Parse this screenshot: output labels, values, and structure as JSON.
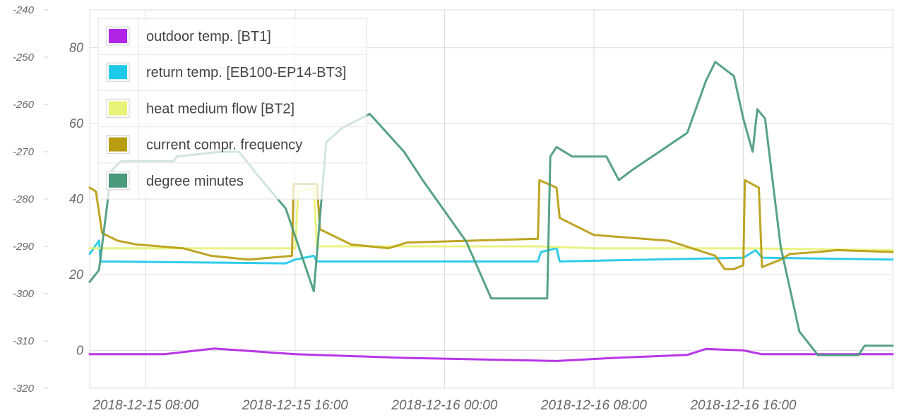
{
  "chart_data": {
    "type": "line",
    "title": "",
    "grid": true,
    "legend_position": "top-left",
    "x_range": [
      "2018-12-15 05:00",
      "2018-12-17 00:00"
    ],
    "x_ticks": [
      "2018-12-15 08:00",
      "2018-12-15 16:00",
      "2018-12-16 00:00",
      "2018-12-16 08:00",
      "2018-12-16 16:00"
    ],
    "y_axis_left": {
      "range": [
        -320,
        -240
      ],
      "ticks": [
        -240,
        -250,
        -260,
        -270,
        -280,
        -290,
        -300,
        -310,
        -320
      ]
    },
    "y_axis_right": {
      "range": [
        -10,
        90
      ],
      "ticks": [
        0,
        20,
        40,
        60,
        80
      ]
    },
    "series": [
      {
        "name": "outdoor temp. [BT1]",
        "color": "#b225e6",
        "axis": "right",
        "points": [
          [
            "2018-12-15 05:00",
            -1
          ],
          [
            "2018-12-15 09:00",
            -1
          ],
          [
            "2018-12-15 11:40",
            0.5
          ],
          [
            "2018-12-15 16:00",
            -1
          ],
          [
            "2018-12-15 22:00",
            -2
          ],
          [
            "2018-12-16 06:00",
            -2.8
          ],
          [
            "2018-12-16 09:00",
            -2
          ],
          [
            "2018-12-16 13:00",
            -1.2
          ],
          [
            "2018-12-16 14:00",
            0.4
          ],
          [
            "2018-12-16 16:00",
            0
          ],
          [
            "2018-12-16 17:00",
            -1
          ],
          [
            "2018-12-17 00:00",
            -1
          ]
        ]
      },
      {
        "name": "return temp. [EB100-EP14-BT3]",
        "color": "#1ec8e8",
        "axis": "right",
        "points": [
          [
            "2018-12-15 05:00",
            25.5
          ],
          [
            "2018-12-15 05:30",
            29
          ],
          [
            "2018-12-15 05:35",
            23.5
          ],
          [
            "2018-12-15 15:30",
            23
          ],
          [
            "2018-12-15 16:00",
            24
          ],
          [
            "2018-12-15 17:00",
            25
          ],
          [
            "2018-12-15 17:10",
            23.5
          ],
          [
            "2018-12-16 05:00",
            23.5
          ],
          [
            "2018-12-16 05:10",
            26
          ],
          [
            "2018-12-16 06:00",
            27
          ],
          [
            "2018-12-16 06:10",
            23.5
          ],
          [
            "2018-12-16 16:00",
            24.5
          ],
          [
            "2018-12-16 16:40",
            26.5
          ],
          [
            "2018-12-16 17:00",
            24.5
          ],
          [
            "2018-12-17 00:00",
            24
          ]
        ]
      },
      {
        "name": "heat medium flow [BT2]",
        "color": "#e8f276",
        "axis": "right",
        "points": [
          [
            "2018-12-15 05:00",
            27
          ],
          [
            "2018-12-15 16:00",
            27
          ],
          [
            "2018-12-15 16:10",
            42
          ],
          [
            "2018-12-15 17:00",
            43
          ],
          [
            "2018-12-15 17:10",
            27.5
          ],
          [
            "2018-12-16 05:00",
            27.5
          ],
          [
            "2018-12-16 08:00",
            27
          ],
          [
            "2018-12-16 16:00",
            27
          ],
          [
            "2018-12-17 00:00",
            26.5
          ]
        ]
      },
      {
        "name": "current compr. frequency",
        "color": "#b89c11",
        "axis": "right",
        "points": [
          [
            "2018-12-15 05:00",
            43
          ],
          [
            "2018-12-15 05:20",
            42
          ],
          [
            "2018-12-15 05:40",
            31
          ],
          [
            "2018-12-15 06:30",
            29
          ],
          [
            "2018-12-15 07:00",
            28.5
          ],
          [
            "2018-12-15 07:30",
            28
          ],
          [
            "2018-12-15 10:00",
            27
          ],
          [
            "2018-12-15 11:30",
            25
          ],
          [
            "2018-12-15 13:30",
            24
          ],
          [
            "2018-12-15 15:50",
            25
          ],
          [
            "2018-12-15 15:55",
            44
          ],
          [
            "2018-12-15 17:10",
            44
          ],
          [
            "2018-12-15 17:20",
            32
          ],
          [
            "2018-12-15 19:00",
            28
          ],
          [
            "2018-12-15 21:00",
            27
          ],
          [
            "2018-12-15 22:00",
            28.5
          ],
          [
            "2018-12-16 05:00",
            29.5
          ],
          [
            "2018-12-16 05:05",
            45
          ],
          [
            "2018-12-16 06:00",
            43
          ],
          [
            "2018-12-16 06:10",
            35
          ],
          [
            "2018-12-16 08:00",
            30.5
          ],
          [
            "2018-12-16 12:00",
            29
          ],
          [
            "2018-12-16 14:30",
            25
          ],
          [
            "2018-12-16 15:00",
            21.5
          ],
          [
            "2018-12-16 15:30",
            21.5
          ],
          [
            "2018-12-16 16:00",
            22.5
          ],
          [
            "2018-12-16 16:05",
            45
          ],
          [
            "2018-12-16 16:50",
            43
          ],
          [
            "2018-12-16 17:00",
            22
          ],
          [
            "2018-12-16 18:00",
            24
          ],
          [
            "2018-12-16 18:30",
            25.5
          ],
          [
            "2018-12-16 20:00",
            26
          ],
          [
            "2018-12-16 21:00",
            26.5
          ],
          [
            "2018-12-17 00:00",
            26
          ]
        ]
      },
      {
        "name": "degree minutes",
        "color": "#4a9a7c",
        "axis": "left",
        "points": [
          [
            "2018-12-15 05:00",
            -297.5
          ],
          [
            "2018-12-15 05:30",
            -295
          ],
          [
            "2018-12-15 06:10",
            -274
          ],
          [
            "2018-12-15 06:40",
            -272
          ],
          [
            "2018-12-15 09:30",
            -272
          ],
          [
            "2018-12-15 09:40",
            -271
          ],
          [
            "2018-12-15 12:00",
            -270
          ],
          [
            "2018-12-15 13:00",
            -270
          ],
          [
            "2018-12-15 14:00",
            -275
          ],
          [
            "2018-12-15 15:30",
            -282
          ],
          [
            "2018-12-15 17:00",
            -299.5
          ],
          [
            "2018-12-15 17:40",
            -268
          ],
          [
            "2018-12-15 18:30",
            -265
          ],
          [
            "2018-12-15 20:00",
            -262
          ],
          [
            "2018-12-15 21:50",
            -270
          ],
          [
            "2018-12-15 22:50",
            -276
          ],
          [
            "2018-12-16 01:10",
            -289
          ],
          [
            "2018-12-16 02:30",
            -301
          ],
          [
            "2018-12-16 05:30",
            -301
          ],
          [
            "2018-12-16 05:40",
            -271
          ],
          [
            "2018-12-16 06:00",
            -269
          ],
          [
            "2018-12-16 06:50",
            -271
          ],
          [
            "2018-12-16 08:40",
            -271
          ],
          [
            "2018-12-16 09:20",
            -276
          ],
          [
            "2018-12-16 10:00",
            -274
          ],
          [
            "2018-12-16 11:30",
            -270
          ],
          [
            "2018-12-16 13:00",
            -266
          ],
          [
            "2018-12-16 14:00",
            -255
          ],
          [
            "2018-12-16 14:30",
            -251
          ],
          [
            "2018-12-16 15:30",
            -254
          ],
          [
            "2018-12-16 16:00",
            -263
          ],
          [
            "2018-12-16 16:30",
            -270
          ],
          [
            "2018-12-16 16:45",
            -261
          ],
          [
            "2018-12-16 17:10",
            -263
          ],
          [
            "2018-12-16 18:00",
            -290
          ],
          [
            "2018-12-16 19:00",
            -308
          ],
          [
            "2018-12-16 20:00",
            -313
          ],
          [
            "2018-12-16 22:10",
            -313
          ],
          [
            "2018-12-16 22:30",
            -311
          ],
          [
            "2018-12-17 00:00",
            -311
          ]
        ]
      }
    ]
  }
}
